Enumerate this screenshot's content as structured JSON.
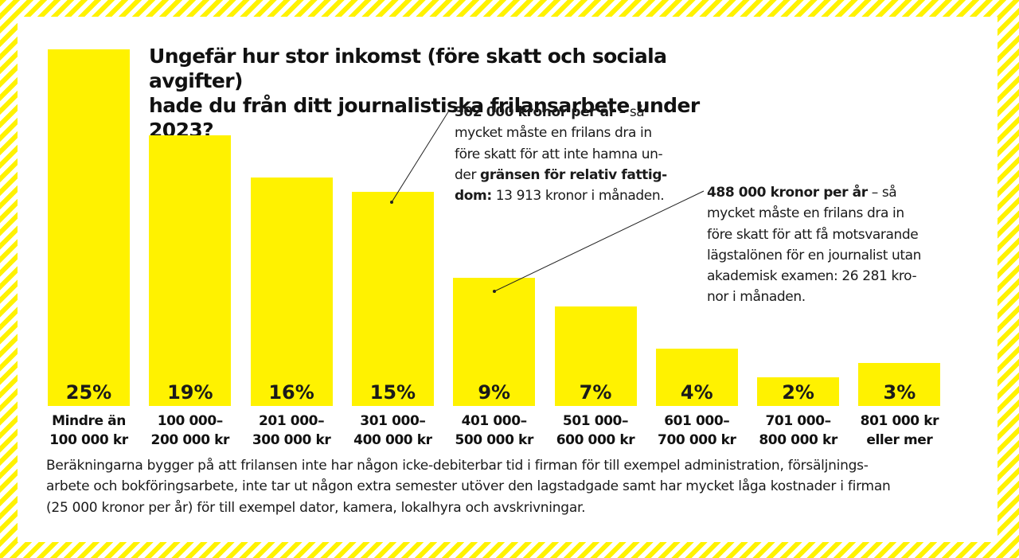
{
  "title_lines": [
    "Ungefär hur stor inkomst (före skatt och sociala avgifter)",
    "hade du från ditt journalistiska frilansarbete under 2023?"
  ],
  "chart_data": {
    "type": "bar",
    "title": "Ungefär hur stor inkomst (före skatt och sociala avgifter) hade du från ditt journalistiska frilansarbete under 2023?",
    "categories": [
      "Mindre än 100 000 kr",
      "100 000– 200 000 kr",
      "201 000– 300 000 kr",
      "301 000– 400 000 kr",
      "401 000– 500 000 kr",
      "501 000– 600 000 kr",
      "601 000– 700 000 kr",
      "701 000– 800 000 kr",
      "801 000 kr eller mer"
    ],
    "values": [
      25,
      19,
      16,
      15,
      9,
      7,
      4,
      2,
      3
    ],
    "value_labels": [
      "25%",
      "19%",
      "16%",
      "15%",
      "9%",
      "7%",
      "4%",
      "2%",
      "3%"
    ],
    "unit": "%",
    "xlabel": "",
    "ylabel": "",
    "ylim": [
      0,
      25
    ],
    "grid": false,
    "bar_color": "#fff200"
  },
  "category_label_lines": [
    [
      "Mindre än",
      "100 000 kr"
    ],
    [
      "100 000–",
      "200 000 kr"
    ],
    [
      "201 000–",
      "300 000 kr"
    ],
    [
      "301 000–",
      "400 000 kr"
    ],
    [
      "401 000–",
      "500 000 kr"
    ],
    [
      "501 000–",
      "600 000 kr"
    ],
    [
      "601 000–",
      "700 000 kr"
    ],
    [
      "701 000–",
      "800 000 kr"
    ],
    [
      "801 000 kr",
      "eller mer"
    ]
  ],
  "annotations": [
    {
      "target_category": "301 000– 400 000 kr",
      "lines": [
        [
          {
            "t": "302 000 kronor per år",
            "b": true
          },
          {
            "t": " – så",
            "b": false
          }
        ],
        [
          {
            "t": "mycket måste en frilans dra in",
            "b": false
          }
        ],
        [
          {
            "t": "före skatt för att inte hamna un-",
            "b": false
          }
        ],
        [
          {
            "t": "der ",
            "b": false
          },
          {
            "t": "gränsen för relativ fattig-",
            "b": true
          }
        ],
        [
          {
            "t": "dom:",
            "b": true
          },
          {
            "t": " 13 913 kronor i månaden.",
            "b": false
          }
        ]
      ]
    },
    {
      "target_category": "401 000– 500 000 kr",
      "lines": [
        [
          {
            "t": "488 000 kronor per år",
            "b": true
          },
          {
            "t": " – så",
            "b": false
          }
        ],
        [
          {
            "t": "mycket måste en frilans dra in",
            "b": false
          }
        ],
        [
          {
            "t": "före skatt för att få motsvarande",
            "b": false
          }
        ],
        [
          {
            "t": "lägstalönen för en journalist utan",
            "b": false
          }
        ],
        [
          {
            "t": "akademisk examen: 26 281 kro-",
            "b": false
          }
        ],
        [
          {
            "t": "nor i månaden.",
            "b": false
          }
        ]
      ]
    }
  ],
  "footnote_lines": [
    "Beräkningarna bygger på att frilansen inte har någon icke-debiterbar tid i firman för till exempel administration, försäljnings-",
    "arbete och bokföringsarbete, inte tar ut någon extra semester utöver den lagstadgade samt har mycket låga kostnader i firman",
    "(25 000 kronor per år) för till exempel dator, kamera, lokalhyra och avskrivningar."
  ],
  "colors": {
    "accent_yellow": "#fff200",
    "text": "#1a1a1a",
    "background": "#ffffff"
  }
}
